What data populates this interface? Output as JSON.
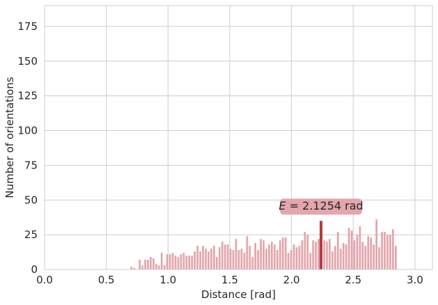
{
  "chart_data": {
    "type": "bar",
    "title": "",
    "xlabel": "Distance [rad]",
    "ylabel": "Number of orientations",
    "xlim": [
      0,
      3.1416
    ],
    "ylim": [
      0,
      190
    ],
    "xticks": [
      0.0,
      0.5,
      1.0,
      1.5,
      2.0,
      2.5,
      3.0
    ],
    "xtick_labels": [
      "0.0",
      "0.5",
      "1.0",
      "1.5",
      "2.0",
      "2.5",
      "3.0"
    ],
    "yticks": [
      0,
      25,
      50,
      75,
      100,
      125,
      150,
      175
    ],
    "ytick_labels": [
      "0",
      "25",
      "50",
      "75",
      "100",
      "125",
      "150",
      "175"
    ],
    "grid": true,
    "bar_color": "#e3a6ac",
    "bin_width": 0.0223,
    "bin_start": 0.6925,
    "values": [
      2,
      1,
      0,
      7,
      3,
      7,
      7,
      9,
      8,
      4,
      3,
      12,
      3,
      11,
      11,
      12,
      10,
      9,
      11,
      12,
      10,
      10,
      10,
      13,
      17,
      13,
      17,
      15,
      13,
      15,
      17,
      9,
      16,
      20,
      18,
      18,
      15,
      14,
      22,
      14,
      15,
      12,
      24,
      17,
      9,
      19,
      14,
      22,
      21,
      15,
      18,
      20,
      18,
      14,
      21,
      23,
      23,
      12,
      14,
      18,
      16,
      17,
      21,
      27,
      25,
      12,
      21,
      20,
      22,
      23,
      21,
      20,
      22,
      13,
      17,
      27,
      15,
      19,
      18,
      30,
      28,
      21,
      25,
      31,
      20,
      17,
      24,
      23,
      18,
      36,
      16,
      27,
      27,
      25,
      25,
      29,
      17
    ],
    "marker": {
      "x": 2.2395,
      "y": 35,
      "color": "#b23a3f"
    },
    "annotation": {
      "label": "E",
      "value_text": " = 2.1254 rad",
      "x": 2.2395,
      "y": 41,
      "box_color": "#e3a6ac"
    }
  }
}
